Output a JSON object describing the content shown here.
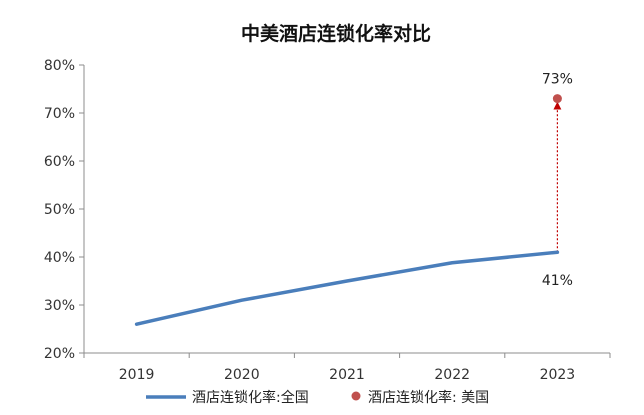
{
  "chart_data": {
    "type": "line",
    "title": "中美酒店连锁化率对比",
    "xlabel": "",
    "ylabel": "",
    "categories": [
      "2019",
      "2020",
      "2021",
      "2022",
      "2023"
    ],
    "ylim": [
      0.2,
      0.8
    ],
    "yticks": [
      0.2,
      0.3,
      0.4,
      0.5,
      0.6,
      0.7,
      0.8
    ],
    "ytick_labels": [
      "20%",
      "30%",
      "40%",
      "50%",
      "60%",
      "70%",
      "80%"
    ],
    "grid": false,
    "legend_position": "bottom",
    "series": [
      {
        "name": "酒店连锁化率:全国",
        "kind": "line",
        "color": "#4a7ebb",
        "values": [
          0.26,
          0.31,
          0.35,
          0.388,
          0.41
        ]
      },
      {
        "name": "酒店连锁化率: 美国",
        "kind": "point",
        "color": "#c0504d",
        "category": "2023",
        "value": 0.73
      }
    ],
    "annotations": [
      {
        "category": "2023",
        "value": 0.73,
        "label": "73%",
        "position": "above"
      },
      {
        "category": "2023",
        "value": 0.41,
        "label": "41%",
        "position": "below"
      }
    ],
    "arrow": {
      "category": "2023",
      "from": 0.41,
      "to": 0.73,
      "color": "#c00000",
      "style": "dotted"
    }
  }
}
